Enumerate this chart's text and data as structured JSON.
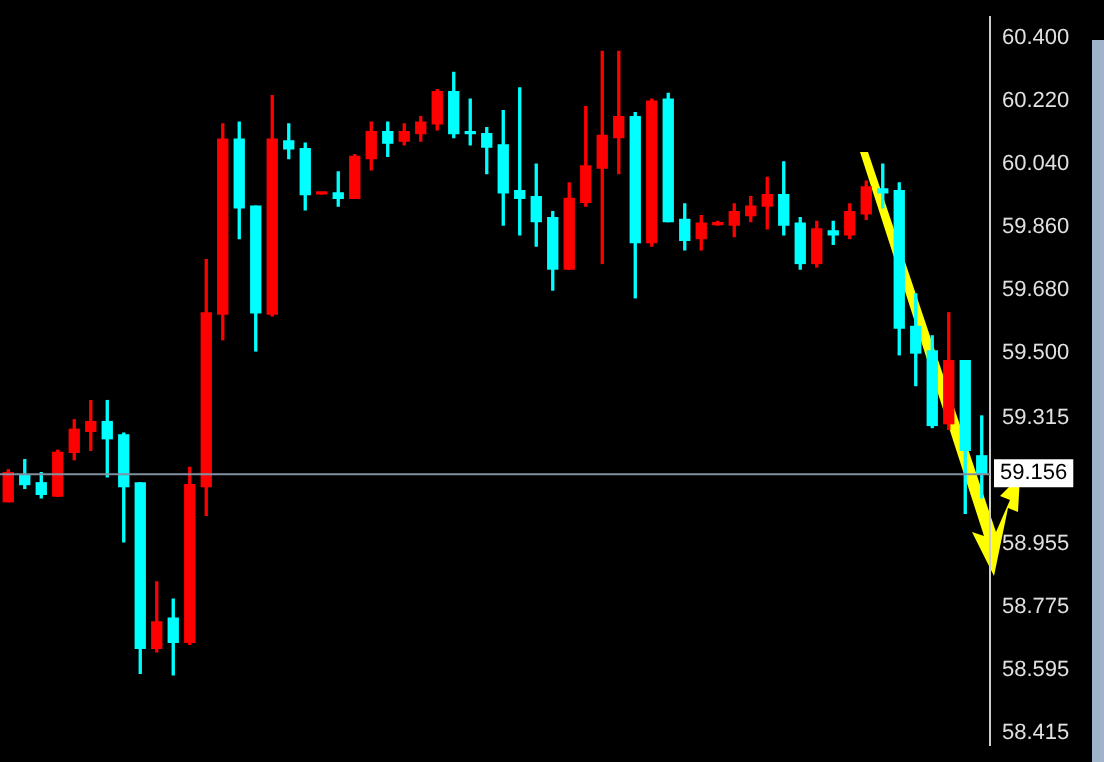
{
  "chart_data": {
    "type": "candlestick",
    "categories": [
      null,
      null,
      null,
      null,
      null,
      null,
      null,
      null,
      null,
      null,
      null,
      null,
      null,
      null,
      null,
      null,
      null,
      null,
      null,
      null,
      null,
      null,
      null,
      null,
      null,
      null,
      null,
      null,
      null,
      null,
      null,
      null,
      null,
      null,
      null,
      null,
      null,
      null,
      null,
      null,
      null,
      null,
      null,
      null,
      null,
      null,
      null,
      null,
      null,
      null,
      null,
      null,
      null,
      null,
      null,
      null,
      null,
      null,
      null,
      null
    ],
    "ohlc": [
      [
        59.075,
        59.166,
        59.075,
        59.158
      ],
      [
        59.151,
        59.195,
        59.113,
        59.124
      ],
      [
        59.129,
        59.158,
        59.086,
        59.096
      ],
      [
        59.091,
        59.222,
        59.091,
        59.216
      ],
      [
        59.216,
        59.309,
        59.195,
        59.282
      ],
      [
        59.276,
        59.364,
        59.222,
        59.304
      ],
      [
        59.304,
        59.364,
        59.146,
        59.255
      ],
      [
        59.266,
        59.271,
        58.96,
        59.118
      ],
      [
        59.129,
        59.129,
        58.584,
        58.656
      ],
      [
        58.656,
        58.846,
        58.646,
        58.731
      ],
      [
        58.742,
        58.796,
        58.58,
        58.673
      ],
      [
        58.673,
        59.173,
        58.667,
        59.124
      ],
      [
        59.118,
        59.767,
        59.036,
        59.615
      ],
      [
        59.611,
        60.155,
        59.538,
        60.111
      ],
      [
        60.111,
        60.16,
        59.827,
        59.915
      ],
      [
        59.92,
        59.92,
        59.506,
        59.615
      ],
      [
        59.611,
        60.236,
        59.606,
        60.111
      ],
      [
        60.106,
        60.155,
        60.056,
        60.084
      ],
      [
        60.084,
        60.1,
        59.909,
        59.953
      ],
      [
        59.955,
        59.957,
        59.955,
        59.957
      ],
      [
        59.958,
        60.018,
        59.92,
        59.942
      ],
      [
        59.942,
        60.067,
        59.942,
        60.062
      ],
      [
        60.056,
        60.16,
        60.024,
        60.133
      ],
      [
        60.133,
        60.16,
        60.062,
        60.1
      ],
      [
        60.106,
        60.155,
        60.095,
        60.133
      ],
      [
        60.127,
        60.176,
        60.106,
        60.16
      ],
      [
        60.155,
        60.253,
        60.138,
        60.247
      ],
      [
        60.247,
        60.302,
        60.116,
        60.127
      ],
      [
        60.133,
        60.226,
        60.095,
        60.127
      ],
      [
        60.127,
        60.144,
        60.013,
        60.089
      ],
      [
        60.095,
        60.193,
        59.866,
        59.958
      ],
      [
        59.964,
        60.258,
        59.838,
        59.942
      ],
      [
        59.947,
        60.04,
        59.806,
        59.876
      ],
      [
        59.887,
        59.904,
        59.68,
        59.74
      ],
      [
        59.74,
        59.986,
        59.74,
        59.942
      ],
      [
        59.931,
        60.204,
        59.92,
        60.035
      ],
      [
        60.029,
        60.362,
        59.756,
        60.122
      ],
      [
        60.116,
        60.362,
        60.013,
        60.176
      ],
      [
        60.176,
        60.187,
        59.658,
        59.816
      ],
      [
        59.816,
        60.226,
        59.806,
        60.22
      ],
      [
        60.226,
        60.242,
        59.876,
        59.876
      ],
      [
        59.882,
        59.926,
        59.795,
        59.822
      ],
      [
        59.827,
        59.893,
        59.795,
        59.871
      ],
      [
        59.867,
        59.876,
        59.866,
        59.871
      ],
      [
        59.866,
        59.926,
        59.833,
        59.904
      ],
      [
        59.893,
        59.947,
        59.876,
        59.92
      ],
      [
        59.92,
        60.002,
        59.855,
        59.953
      ],
      [
        59.953,
        60.046,
        59.838,
        59.866
      ],
      [
        59.871,
        59.887,
        59.74,
        59.756
      ],
      [
        59.756,
        59.876,
        59.746,
        59.855
      ],
      [
        59.849,
        59.876,
        59.811,
        59.838
      ],
      [
        59.838,
        59.926,
        59.827,
        59.904
      ],
      [
        59.898,
        59.991,
        59.882,
        59.975
      ],
      [
        59.969,
        60.04,
        59.915,
        59.958
      ],
      [
        59.964,
        59.986,
        59.495,
        59.571
      ],
      [
        59.576,
        59.669,
        59.407,
        59.5
      ],
      [
        59.506,
        59.549,
        59.287,
        59.293
      ],
      [
        59.298,
        59.615,
        59.282,
        59.478
      ],
      [
        59.478,
        59.478,
        59.042,
        59.222
      ],
      [
        59.206,
        59.32,
        59.086,
        59.156
      ]
    ],
    "colors": [
      "#ff0000",
      "#00ffff",
      "#00ffff",
      "#ff0000",
      "#ff0000",
      "#ff0000",
      "#00ffff",
      "#00ffff",
      "#00ffff",
      "#ff0000",
      "#00ffff",
      "#ff0000",
      "#ff0000",
      "#ff0000",
      "#00ffff",
      "#00ffff",
      "#ff0000",
      "#00ffff",
      "#00ffff",
      "#ff0000",
      "#00ffff",
      "#ff0000",
      "#ff0000",
      "#00ffff",
      "#ff0000",
      "#ff0000",
      "#ff0000",
      "#00ffff",
      "#00ffff",
      "#00ffff",
      "#00ffff",
      "#00ffff",
      "#00ffff",
      "#00ffff",
      "#ff0000",
      "#ff0000",
      "#ff0000",
      "#ff0000",
      "#00ffff",
      "#ff0000",
      "#00ffff",
      "#00ffff",
      "#ff0000",
      "#ff0000",
      "#ff0000",
      "#ff0000",
      "#ff0000",
      "#00ffff",
      "#00ffff",
      "#ff0000",
      "#00ffff",
      "#ff0000",
      "#ff0000",
      "#00ffff",
      "#00ffff",
      "#00ffff",
      "#00ffff",
      "#ff0000",
      "#00ffff",
      "#00ffff"
    ],
    "ylim": [
      58.38,
      60.46
    ],
    "yticks": [
      {
        "value": 60.4,
        "label": "60.400"
      },
      {
        "value": 60.22,
        "label": "60.220"
      },
      {
        "value": 60.04,
        "label": "60.040"
      },
      {
        "value": 59.86,
        "label": "59.860"
      },
      {
        "value": 59.68,
        "label": "59.680"
      },
      {
        "value": 59.5,
        "label": "59.500"
      },
      {
        "value": 59.315,
        "label": "59.315"
      },
      {
        "value": 58.955,
        "label": "58.955"
      },
      {
        "value": 58.775,
        "label": "58.775"
      },
      {
        "value": 58.595,
        "label": "58.595"
      },
      {
        "value": 58.415,
        "label": "58.415"
      }
    ],
    "ref_lines": [
      {
        "axis": "y",
        "value": 59.156,
        "label": "59.156",
        "color": "#8090a0"
      }
    ],
    "tick_labels": "y",
    "grid": false,
    "legend": false
  }
}
